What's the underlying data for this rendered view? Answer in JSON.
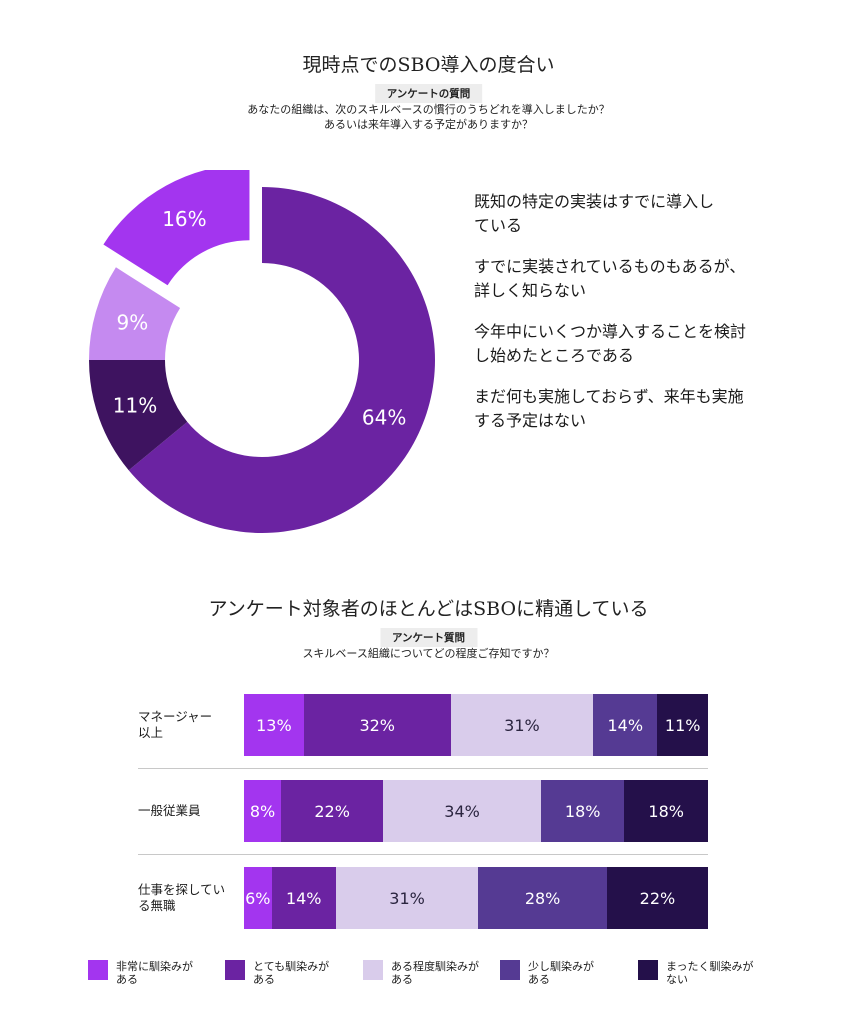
{
  "section1": {
    "title": "現時点でのSBO導入の度合い",
    "question_tag": "アンケートの質問",
    "question_line1": "あなたの組織は、次のスキルベースの慣行のうちどれを導入しましたか？",
    "question_line2": "あるいは来年導入する予定がありますか？"
  },
  "section2": {
    "title": "アンケート対象者のほとんどはSBOに精通している",
    "question_tag": "アンケート質問",
    "question_line1": "スキルベース組織についてどの程度ご存知ですか？"
  },
  "chart_data": [
    {
      "type": "pie",
      "title": "現時点でのSBO導入の度合い",
      "slices": [
        {
          "label": "既知の特定の実装はすでに導入している",
          "value": 64,
          "display": "64%",
          "color": "#6b23a2"
        },
        {
          "label": "すでに実装されているものもあるが、詳しく知らない",
          "value": 11,
          "display": "11%",
          "color": "#3e1360"
        },
        {
          "label": "今年中にいくつか導入することを検討し始めたところである",
          "value": 9,
          "display": "9%",
          "color": "#c58af0"
        },
        {
          "label": "まだ何も実施しておらず、来年も実施する予定はない",
          "value": 16,
          "display": "16%",
          "color": "#a335ef",
          "exploded": true
        }
      ],
      "legend_lines": [
        [
          "既知の特定の実装はすでに導入し",
          "ている"
        ],
        [
          "すでに実装されているものもあるが、",
          "詳しく知らない"
        ],
        [
          "今年中にいくつか導入することを検討",
          "し始めたところである"
        ],
        [
          "まだ何も実施しておらず、来年も実施",
          "する予定はない"
        ]
      ],
      "legend_position": "right"
    },
    {
      "type": "bar",
      "orientation": "horizontal",
      "stacked": true,
      "title": "アンケート対象者のほとんどはSBOに精通している",
      "categories": [
        [
          "マネージャー",
          "以上"
        ],
        [
          "一般従業員"
        ],
        [
          "仕事を探してい",
          "る無職"
        ]
      ],
      "series": [
        {
          "name": "非常に馴染みがある",
          "legend_lines": [
            "非常に馴染みが",
            "ある"
          ],
          "color": "#a335ef",
          "values": [
            13,
            8,
            6
          ]
        },
        {
          "name": "とても馴染みがある",
          "legend_lines": [
            "とても馴染みが",
            "ある"
          ],
          "color": "#6b23a2",
          "values": [
            32,
            22,
            14
          ]
        },
        {
          "name": "ある程度馴染みがある",
          "legend_lines": [
            "ある程度馴染みが",
            "ある"
          ],
          "color": "#d9cceb",
          "values": [
            31,
            34,
            31
          ]
        },
        {
          "name": "少し馴染みがある",
          "legend_lines": [
            "少し馴染みが",
            "ある"
          ],
          "color": "#553a93",
          "values": [
            14,
            18,
            28
          ]
        },
        {
          "name": "まったく馴染みがない",
          "legend_lines": [
            "まったく馴染みが",
            "ない"
          ],
          "color": "#24104a",
          "values": [
            11,
            18,
            22
          ]
        }
      ],
      "legend_position": "bottom"
    }
  ]
}
